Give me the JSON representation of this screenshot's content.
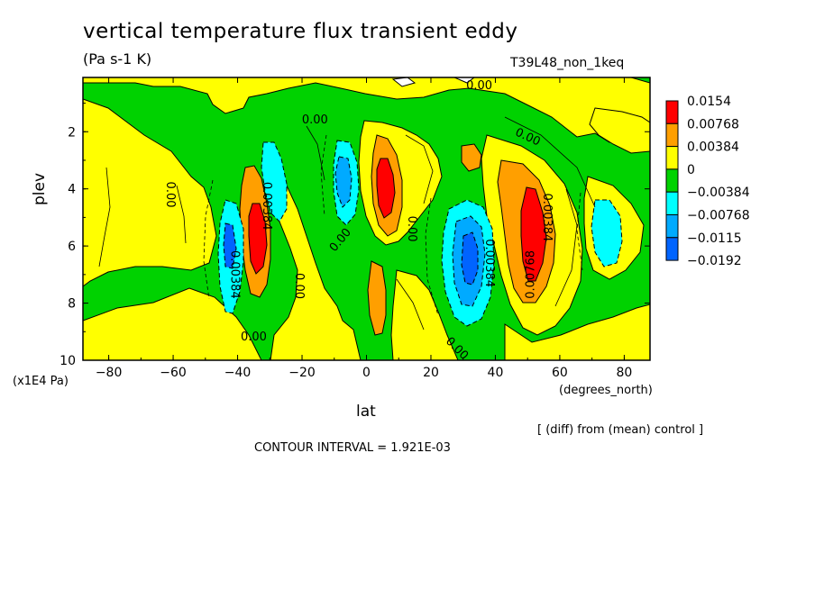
{
  "header": {
    "title": "vertical temperature flux transient eddy",
    "units": "(Pa s-1 K)",
    "run_id": "T39L48_non_1keq"
  },
  "axes": {
    "ylabel": "plev",
    "yunit": "(x1E4 Pa)",
    "xlabel": "lat",
    "xunit": "(degrees_north)"
  },
  "footer": {
    "diff_note": "[ (diff) from (mean) control ]",
    "contour_interval": "CONTOUR INTERVAL = 1.921E-03"
  },
  "chart_data": {
    "type": "heatmap",
    "xlim": [
      -88,
      88
    ],
    "ylim": [
      10,
      0.1
    ],
    "xticks": [
      -80,
      -60,
      -40,
      -20,
      0,
      20,
      40,
      60,
      80
    ],
    "yticks": [
      2,
      4,
      6,
      8,
      10
    ],
    "legend": {
      "placement": "right",
      "levels": [
        "0.0154",
        "0.00768",
        "0.00384",
        "0",
        "−0.00384",
        "−0.00768",
        "−0.0115",
        "−0.0192"
      ],
      "colors": [
        "#ff0000",
        "#ff9f00",
        "#ffff00",
        "#00d200",
        "#00ffff",
        "#00aaff",
        "#0064ff"
      ]
    },
    "contour_labels": [
      {
        "text": "0.00",
        "lat": 35,
        "plev": 0.4,
        "angle": 0
      },
      {
        "text": "0.00",
        "lat": -16,
        "plev": 1.6,
        "angle": 0
      },
      {
        "text": "0.00",
        "lat": 50,
        "plev": 2.2,
        "angle": 25
      },
      {
        "text": "0.00",
        "lat": -61,
        "plev": 4.2,
        "angle": 90
      },
      {
        "text": "0.00384",
        "lat": -31,
        "plev": 4.6,
        "angle": 90
      },
      {
        "text": "0.00384",
        "lat": -41,
        "plev": 7.0,
        "angle": 90
      },
      {
        "text": "0.00",
        "lat": -21,
        "plev": 7.4,
        "angle": 90
      },
      {
        "text": "0.00",
        "lat": -8,
        "plev": 5.8,
        "angle": -50
      },
      {
        "text": "0.00",
        "lat": 14,
        "plev": 5.4,
        "angle": 90
      },
      {
        "text": "0.00384",
        "lat": 38,
        "plev": 6.6,
        "angle": 90
      },
      {
        "text": "0.00768",
        "lat": 51,
        "plev": 7.0,
        "angle": -90
      },
      {
        "text": "0.00384",
        "lat": 56,
        "plev": 5.0,
        "angle": 90
      },
      {
        "text": "0.00",
        "lat": -35,
        "plev": 9.2,
        "angle": 0
      },
      {
        "text": "0.00",
        "lat": 28,
        "plev": 9.6,
        "angle": 45
      }
    ]
  }
}
